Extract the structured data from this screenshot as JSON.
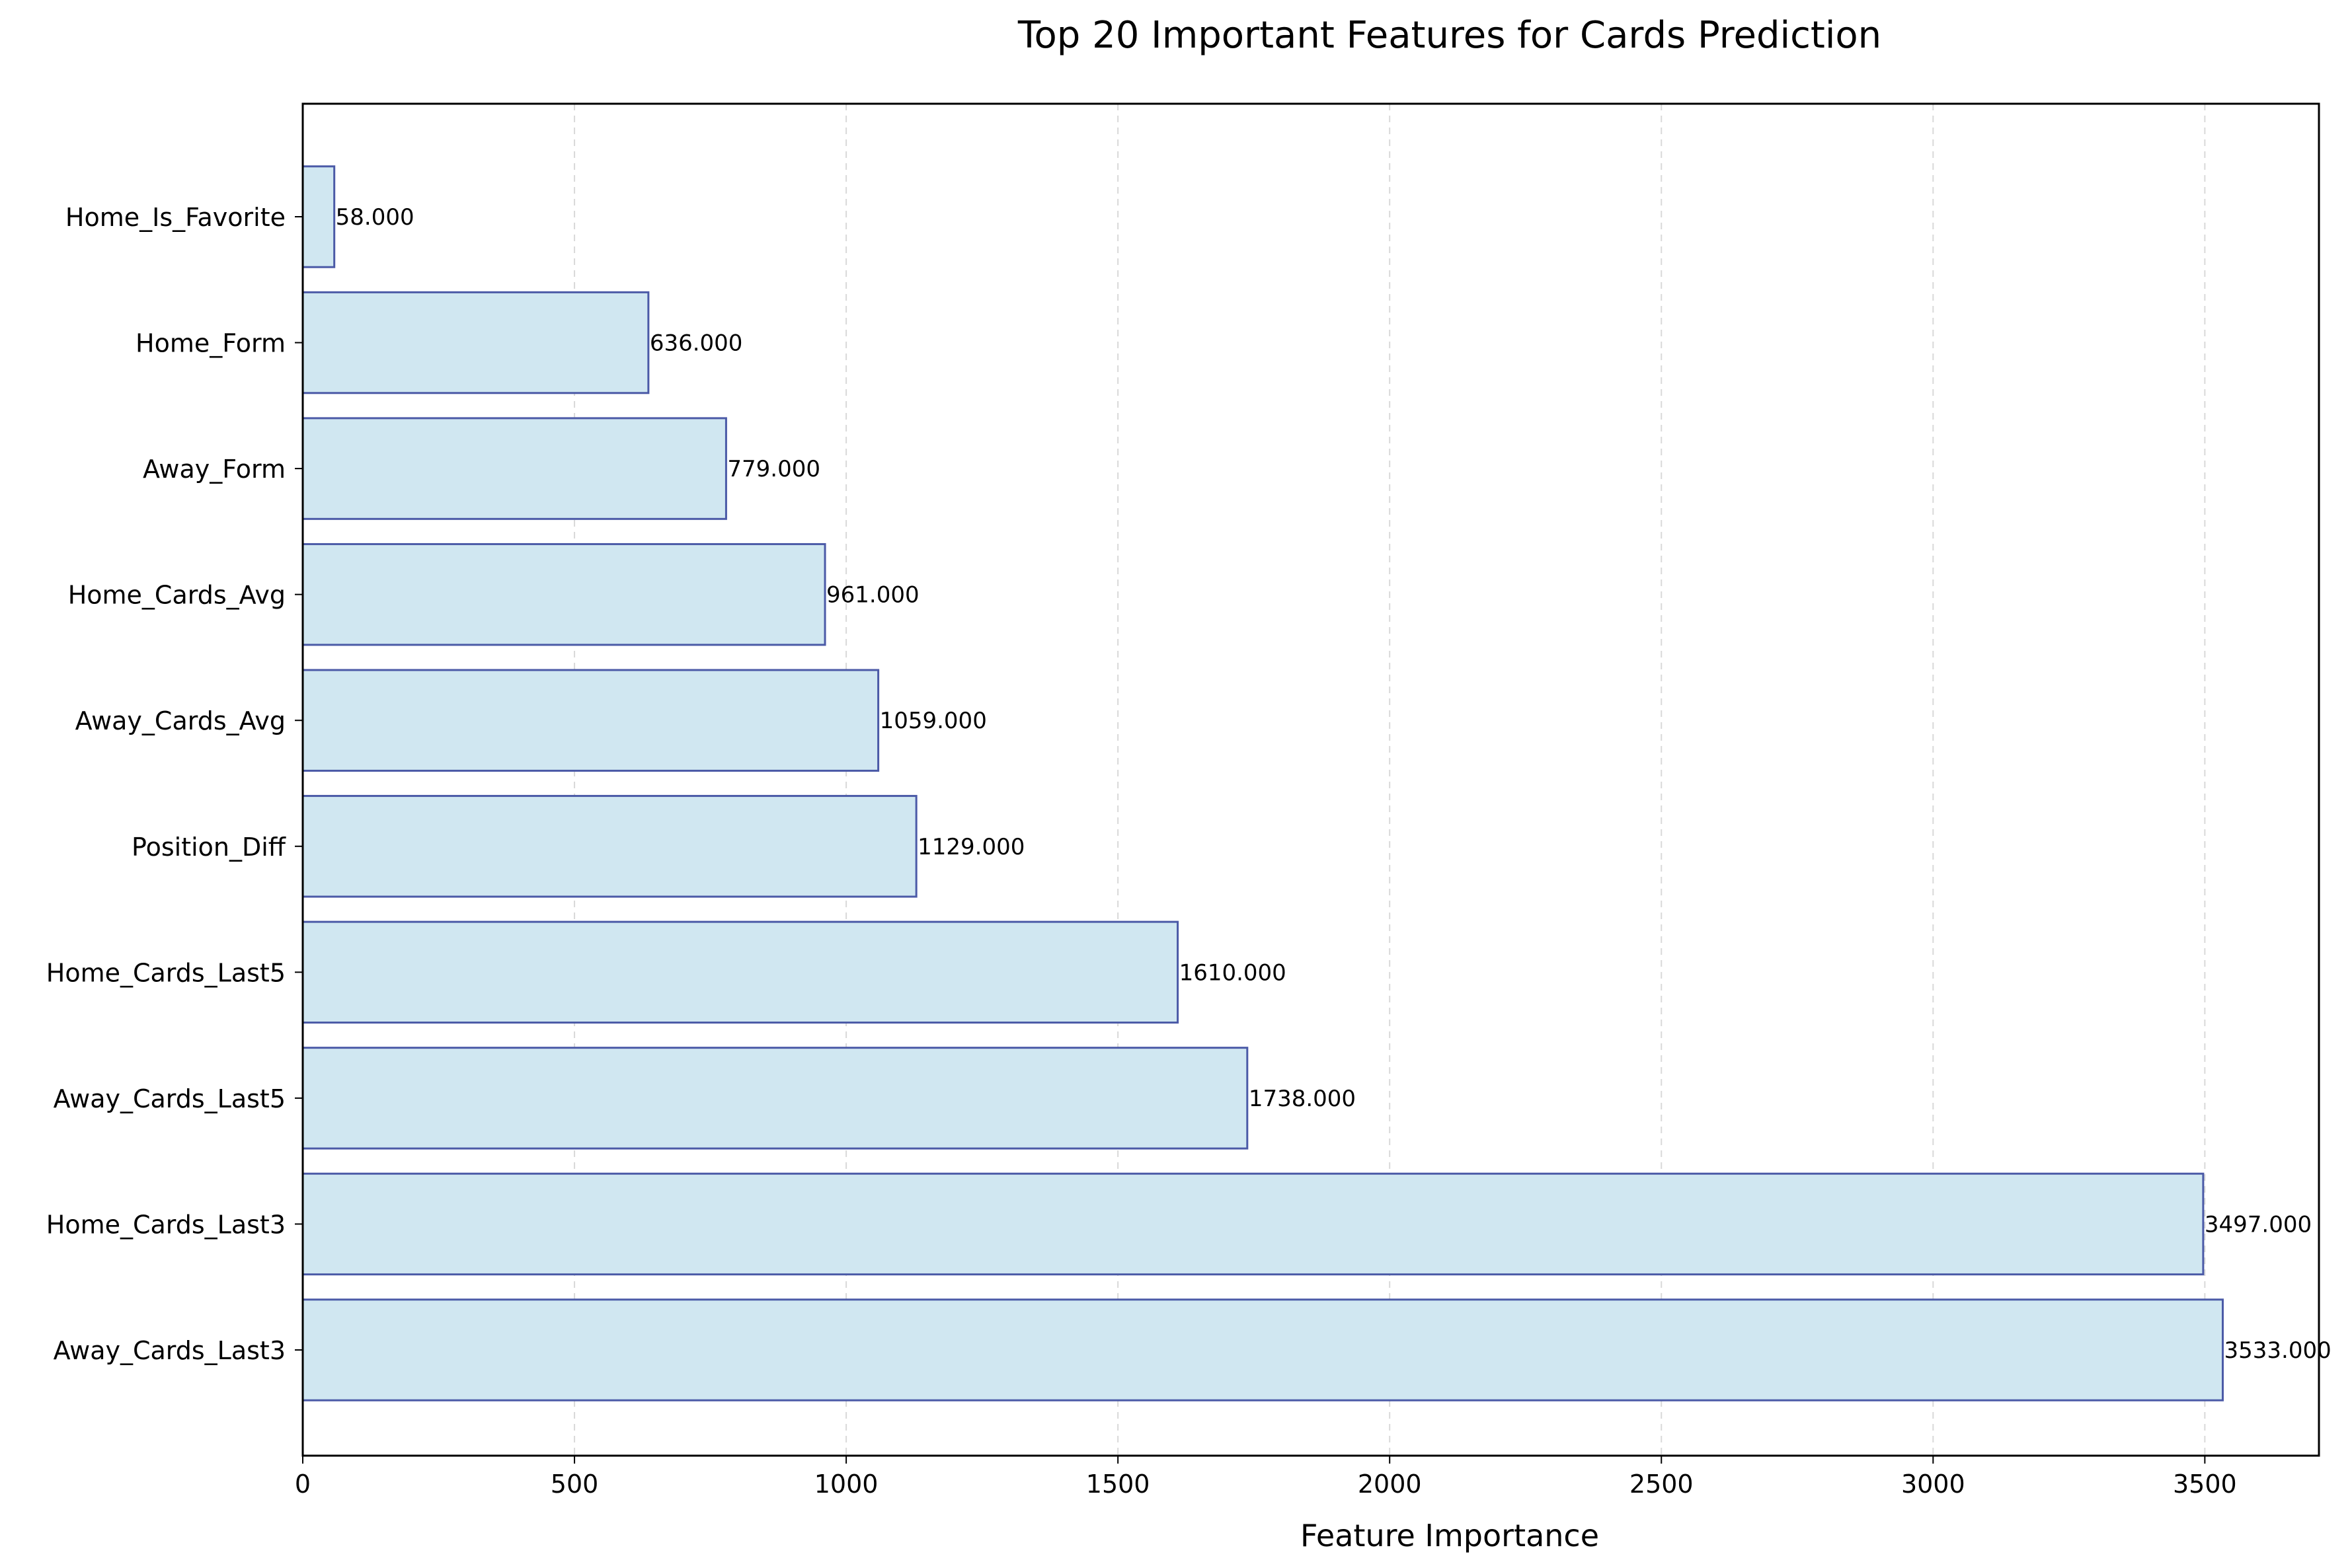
{
  "chart_data": {
    "type": "bar",
    "orientation": "horizontal",
    "title": "Top 20 Important Features for Cards Prediction",
    "xlabel": "Feature Importance",
    "ylabel": "",
    "xlim": [
      0,
      3710
    ],
    "xticks": [
      0,
      500,
      1000,
      1500,
      2000,
      2500,
      3000,
      3500
    ],
    "grid": "x-dashed",
    "legend": "none",
    "colors": {
      "bar_fill": "#d0e7f1",
      "bar_edge": "#4b5aa7",
      "grid": "#d9d9d9"
    },
    "categories": [
      "Away_Cards_Last3",
      "Home_Cards_Last3",
      "Away_Cards_Last5",
      "Home_Cards_Last5",
      "Position_Diff",
      "Away_Cards_Avg",
      "Home_Cards_Avg",
      "Away_Form",
      "Home_Form",
      "Home_Is_Favorite"
    ],
    "values": [
      3533,
      3497,
      1738,
      1610,
      1129,
      1059,
      961,
      779,
      636,
      58
    ],
    "value_labels": [
      "3533.000",
      "3497.000",
      "1738.000",
      "1610.000",
      "1129.000",
      "1059.000",
      "961.000",
      "779.000",
      "636.000",
      "58.000"
    ]
  }
}
